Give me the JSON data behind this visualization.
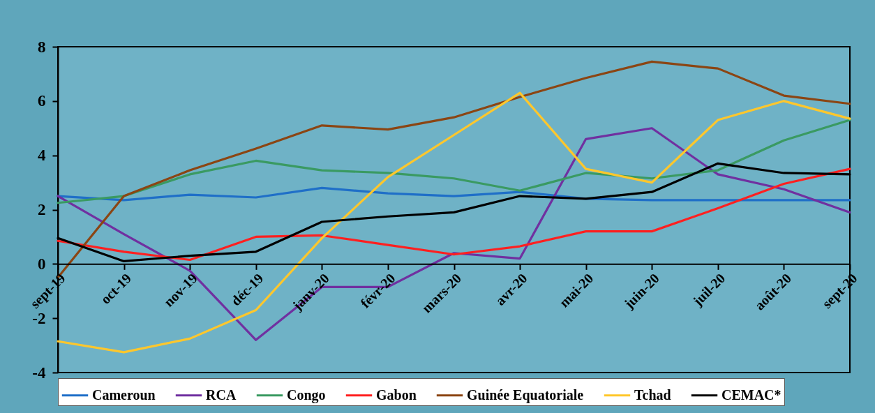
{
  "chart_data": {
    "type": "line",
    "categories": [
      "sept-19",
      "oct-19",
      "nov-19",
      "déc-19",
      "janv-20",
      "févr-20",
      "mars-20",
      "avr-20",
      "mai-20",
      "juin-20",
      "juil-20",
      "août-20",
      "sept-20"
    ],
    "ylim": [
      -4,
      8
    ],
    "yticks": [
      -4,
      -2,
      0,
      2,
      4,
      6,
      8
    ],
    "legend": "bottom",
    "series": [
      {
        "name": "Cameroun",
        "color": "#1f6fc8",
        "values": [
          2.5,
          2.35,
          2.55,
          2.45,
          2.8,
          2.6,
          2.5,
          2.65,
          2.4,
          2.35,
          2.35,
          2.35,
          2.35
        ]
      },
      {
        "name": "RCA",
        "color": "#7030a0",
        "values": [
          2.5,
          1.1,
          -0.25,
          -2.8,
          -0.85,
          -0.85,
          0.4,
          0.2,
          4.6,
          5.0,
          3.3,
          2.75,
          1.9
        ]
      },
      {
        "name": "Congo",
        "color": "#3a9a62",
        "values": [
          2.25,
          2.5,
          3.3,
          3.8,
          3.45,
          3.35,
          3.15,
          2.7,
          3.35,
          3.15,
          3.45,
          4.55,
          5.3
        ]
      },
      {
        "name": "Gabon",
        "color": "#ff2020",
        "values": [
          0.85,
          0.45,
          0.15,
          1.0,
          1.05,
          0.7,
          0.35,
          0.65,
          1.2,
          1.2,
          2.05,
          2.95,
          3.5
        ]
      },
      {
        "name": "Guinée Equatoriale",
        "color": "#8b4513",
        "values": [
          -0.5,
          2.5,
          3.45,
          4.25,
          5.1,
          4.95,
          5.4,
          6.15,
          6.85,
          7.45,
          7.2,
          6.2,
          5.9
        ]
      },
      {
        "name": "Tchad",
        "color": "#ffc72c",
        "values": [
          -2.85,
          -3.25,
          -2.75,
          -1.7,
          0.95,
          3.2,
          4.75,
          6.3,
          3.5,
          3.0,
          5.3,
          6.0,
          5.35
        ]
      },
      {
        "name": "CEMAC*",
        "color": "#000000",
        "values": [
          0.95,
          0.1,
          0.3,
          0.45,
          1.55,
          1.75,
          1.9,
          2.5,
          2.4,
          2.65,
          3.7,
          3.35,
          3.3
        ]
      }
    ]
  }
}
